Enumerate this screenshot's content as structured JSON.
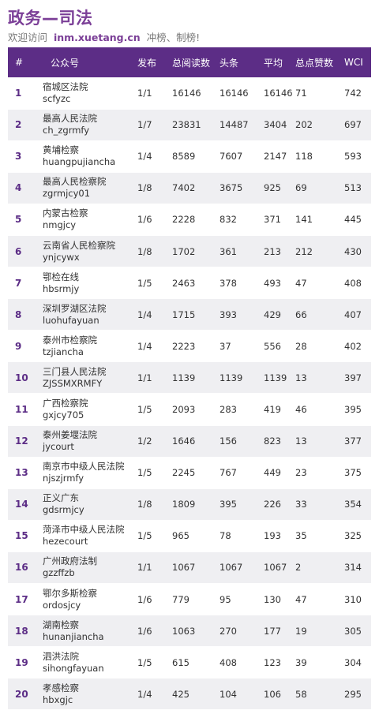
{
  "header": {
    "title": "政务—司法",
    "welcome": "欢迎访问",
    "site": "inm.xuetang.cn",
    "suffix": "冲榜、制榜!"
  },
  "table": {
    "columns": [
      "#",
      "公众号",
      "发布",
      "总阅读数",
      "头条",
      "平均",
      "总点赞数",
      "WCI"
    ],
    "rows": [
      {
        "rank": "1",
        "name": "宿城区法院",
        "account": "scfyzc",
        "publish": "1/1",
        "total": "16146",
        "headline": "16146",
        "avg": "16146",
        "likes": "71",
        "wci": "742"
      },
      {
        "rank": "2",
        "name": "最高人民法院",
        "account": "ch_zgrmfy",
        "publish": "1/7",
        "total": "23831",
        "headline": "14487",
        "avg": "3404",
        "likes": "202",
        "wci": "697"
      },
      {
        "rank": "3",
        "name": "黄埔检察",
        "account": "huangpujiancha",
        "publish": "1/4",
        "total": "8589",
        "headline": "7607",
        "avg": "2147",
        "likes": "118",
        "wci": "593"
      },
      {
        "rank": "4",
        "name": "最高人民检察院",
        "account": "zgrmjcy01",
        "publish": "1/8",
        "total": "7402",
        "headline": "3675",
        "avg": "925",
        "likes": "69",
        "wci": "513"
      },
      {
        "rank": "5",
        "name": "内蒙古检察",
        "account": "nmgjcy",
        "publish": "1/6",
        "total": "2228",
        "headline": "832",
        "avg": "371",
        "likes": "141",
        "wci": "445"
      },
      {
        "rank": "6",
        "name": "云南省人民检察院",
        "account": "ynjcywx",
        "publish": "1/8",
        "total": "1702",
        "headline": "361",
        "avg": "213",
        "likes": "212",
        "wci": "430"
      },
      {
        "rank": "7",
        "name": "鄂检在线",
        "account": "hbsrmjy",
        "publish": "1/5",
        "total": "2463",
        "headline": "378",
        "avg": "493",
        "likes": "47",
        "wci": "408"
      },
      {
        "rank": "8",
        "name": "深圳罗湖区法院",
        "account": "luohufayuan",
        "publish": "1/4",
        "total": "1715",
        "headline": "393",
        "avg": "429",
        "likes": "66",
        "wci": "407"
      },
      {
        "rank": "9",
        "name": "泰州市检察院",
        "account": "tzjiancha",
        "publish": "1/4",
        "total": "2223",
        "headline": "37",
        "avg": "556",
        "likes": "28",
        "wci": "402"
      },
      {
        "rank": "10",
        "name": "三门县人民法院",
        "account": "ZJSSMXRMFY",
        "publish": "1/1",
        "total": "1139",
        "headline": "1139",
        "avg": "1139",
        "likes": "13",
        "wci": "397"
      },
      {
        "rank": "11",
        "name": "广西检察院",
        "account": "gxjcy705",
        "publish": "1/5",
        "total": "2093",
        "headline": "283",
        "avg": "419",
        "likes": "46",
        "wci": "395"
      },
      {
        "rank": "12",
        "name": "泰州姜堰法院",
        "account": "jycourt",
        "publish": "1/2",
        "total": "1646",
        "headline": "156",
        "avg": "823",
        "likes": "13",
        "wci": "377"
      },
      {
        "rank": "13",
        "name": "南京市中级人民法院",
        "account": "njszjrmfy",
        "publish": "1/5",
        "total": "2245",
        "headline": "767",
        "avg": "449",
        "likes": "23",
        "wci": "375"
      },
      {
        "rank": "14",
        "name": "正义广东",
        "account": "gdsrmjcy",
        "publish": "1/8",
        "total": "1809",
        "headline": "395",
        "avg": "226",
        "likes": "33",
        "wci": "354"
      },
      {
        "rank": "15",
        "name": "菏泽市中级人民法院",
        "account": "hezecourt",
        "publish": "1/5",
        "total": "965",
        "headline": "78",
        "avg": "193",
        "likes": "35",
        "wci": "325"
      },
      {
        "rank": "16",
        "name": "广州政府法制",
        "account": "gzzffzb",
        "publish": "1/1",
        "total": "1067",
        "headline": "1067",
        "avg": "1067",
        "likes": "2",
        "wci": "314"
      },
      {
        "rank": "17",
        "name": "鄂尔多斯检察",
        "account": "ordosjcy",
        "publish": "1/6",
        "total": "779",
        "headline": "95",
        "avg": "130",
        "likes": "47",
        "wci": "310"
      },
      {
        "rank": "18",
        "name": "湖南检察",
        "account": "hunanjiancha",
        "publish": "1/6",
        "total": "1063",
        "headline": "270",
        "avg": "177",
        "likes": "19",
        "wci": "305"
      },
      {
        "rank": "19",
        "name": "泗洪法院",
        "account": "sihongfayuan",
        "publish": "1/5",
        "total": "615",
        "headline": "408",
        "avg": "123",
        "likes": "39",
        "wci": "304"
      },
      {
        "rank": "20",
        "name": "孝感检察",
        "account": "hbxgjc",
        "publish": "1/4",
        "total": "425",
        "headline": "104",
        "avg": "106",
        "likes": "58",
        "wci": "295"
      }
    ]
  }
}
